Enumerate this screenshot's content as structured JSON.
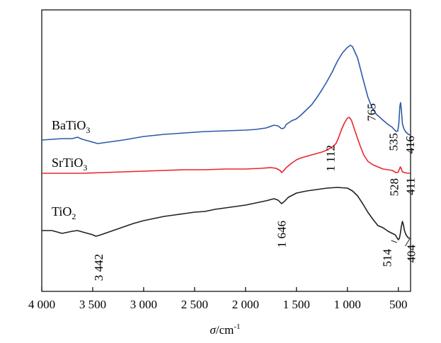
{
  "chart_data": {
    "type": "line",
    "xlabel": "σ/cm⁻¹",
    "xlabel_parts": {
      "symbol": "σ",
      "unit": "/cm",
      "exp": "-1"
    },
    "xlim": [
      4000,
      380
    ],
    "x_reversed": true,
    "y_axis_visible": false,
    "grid": false,
    "xticks": [
      {
        "value": 4000,
        "label": "4 000"
      },
      {
        "value": 3500,
        "label": "3 500"
      },
      {
        "value": 3000,
        "label": "3 000"
      },
      {
        "value": 2500,
        "label": "2 500"
      },
      {
        "value": 2000,
        "label": "2 000"
      },
      {
        "value": 1500,
        "label": "1 500"
      },
      {
        "value": 1000,
        "label": "1 000"
      },
      {
        "value": 500,
        "label": "500"
      }
    ],
    "series": [
      {
        "name": "BaTiO3",
        "label_base": "BaTiO",
        "label_sub": "3",
        "color": "#2c5aa8",
        "points": [
          [
            4000,
            198
          ],
          [
            3900,
            197
          ],
          [
            3800,
            196
          ],
          [
            3700,
            196
          ],
          [
            3650,
            194
          ],
          [
            3600,
            197
          ],
          [
            3500,
            201
          ],
          [
            3450,
            203
          ],
          [
            3400,
            202
          ],
          [
            3300,
            200
          ],
          [
            3200,
            198
          ],
          [
            3000,
            193
          ],
          [
            2800,
            190
          ],
          [
            2600,
            188
          ],
          [
            2400,
            186
          ],
          [
            2200,
            185
          ],
          [
            2000,
            184
          ],
          [
            1900,
            183
          ],
          [
            1800,
            181
          ],
          [
            1720,
            177
          ],
          [
            1680,
            178
          ],
          [
            1646,
            182
          ],
          [
            1620,
            181
          ],
          [
            1600,
            176
          ],
          [
            1550,
            171
          ],
          [
            1500,
            168
          ],
          [
            1450,
            162
          ],
          [
            1400,
            155
          ],
          [
            1350,
            148
          ],
          [
            1300,
            138
          ],
          [
            1250,
            127
          ],
          [
            1200,
            115
          ],
          [
            1150,
            102
          ],
          [
            1100,
            87
          ],
          [
            1050,
            75
          ],
          [
            1000,
            67
          ],
          [
            970,
            64
          ],
          [
            950,
            66
          ],
          [
            900,
            82
          ],
          [
            850,
            110
          ],
          [
            800,
            137
          ],
          [
            765,
            150
          ],
          [
            720,
            161
          ],
          [
            650,
            170
          ],
          [
            600,
            176
          ],
          [
            560,
            180
          ],
          [
            535,
            184
          ],
          [
            520,
            186
          ],
          [
            505,
            185
          ],
          [
            495,
            175
          ],
          [
            485,
            150
          ],
          [
            478,
            145
          ],
          [
            470,
            155
          ],
          [
            460,
            175
          ],
          [
            445,
            182
          ],
          [
            430,
            186
          ],
          [
            416,
            188
          ],
          [
            400,
            190
          ],
          [
            385,
            191
          ]
        ]
      },
      {
        "name": "SrTiO3",
        "label_base": "SrTiO",
        "label_sub": "3",
        "color": "#e8262b",
        "points": [
          [
            4000,
            245
          ],
          [
            3800,
            245
          ],
          [
            3600,
            245
          ],
          [
            3400,
            244
          ],
          [
            3200,
            243
          ],
          [
            3000,
            242
          ],
          [
            2800,
            241
          ],
          [
            2600,
            240
          ],
          [
            2400,
            240
          ],
          [
            2200,
            239
          ],
          [
            2000,
            239
          ],
          [
            1850,
            238
          ],
          [
            1750,
            237
          ],
          [
            1700,
            238
          ],
          [
            1660,
            241
          ],
          [
            1646,
            244
          ],
          [
            1630,
            242
          ],
          [
            1600,
            237
          ],
          [
            1550,
            231
          ],
          [
            1500,
            226
          ],
          [
            1450,
            223
          ],
          [
            1400,
            221
          ],
          [
            1350,
            219
          ],
          [
            1300,
            217
          ],
          [
            1250,
            215
          ],
          [
            1200,
            212
          ],
          [
            1150,
            208
          ],
          [
            1112,
            203
          ],
          [
            1090,
            196
          ],
          [
            1060,
            184
          ],
          [
            1030,
            174
          ],
          [
            1000,
            167
          ],
          [
            980,
            166
          ],
          [
            960,
            170
          ],
          [
            930,
            183
          ],
          [
            900,
            196
          ],
          [
            870,
            208
          ],
          [
            840,
            219
          ],
          [
            800,
            228
          ],
          [
            750,
            233
          ],
          [
            700,
            236
          ],
          [
            650,
            239
          ],
          [
            600,
            240
          ],
          [
            560,
            241
          ],
          [
            535,
            243
          ],
          [
            528,
            244
          ],
          [
            515,
            244
          ],
          [
            500,
            243
          ],
          [
            490,
            239
          ],
          [
            480,
            236
          ],
          [
            470,
            239
          ],
          [
            460,
            243
          ],
          [
            440,
            244
          ],
          [
            411,
            245
          ],
          [
            395,
            245
          ],
          [
            385,
            245
          ]
        ]
      },
      {
        "name": "TiO2",
        "label_base": "TiO",
        "label_sub": "2",
        "color": "#231f20",
        "points": [
          [
            4000,
            326
          ],
          [
            3900,
            326
          ],
          [
            3800,
            330
          ],
          [
            3700,
            327
          ],
          [
            3650,
            326
          ],
          [
            3600,
            328
          ],
          [
            3550,
            330
          ],
          [
            3500,
            332
          ],
          [
            3470,
            334
          ],
          [
            3442,
            333
          ],
          [
            3400,
            331
          ],
          [
            3300,
            326
          ],
          [
            3200,
            321
          ],
          [
            3100,
            316
          ],
          [
            3000,
            312
          ],
          [
            2900,
            309
          ],
          [
            2800,
            306
          ],
          [
            2700,
            304
          ],
          [
            2600,
            302
          ],
          [
            2500,
            300
          ],
          [
            2400,
            299
          ],
          [
            2300,
            296
          ],
          [
            2200,
            294
          ],
          [
            2100,
            292
          ],
          [
            2000,
            290
          ],
          [
            1900,
            287
          ],
          [
            1800,
            284
          ],
          [
            1720,
            281
          ],
          [
            1680,
            283
          ],
          [
            1646,
            288
          ],
          [
            1620,
            285
          ],
          [
            1580,
            279
          ],
          [
            1500,
            273
          ],
          [
            1400,
            270
          ],
          [
            1300,
            268
          ],
          [
            1200,
            266
          ],
          [
            1100,
            265
          ],
          [
            1000,
            266
          ],
          [
            950,
            270
          ],
          [
            900,
            277
          ],
          [
            850,
            288
          ],
          [
            800,
            300
          ],
          [
            750,
            310
          ],
          [
            700,
            319
          ],
          [
            650,
            322
          ],
          [
            600,
            327
          ],
          [
            560,
            330
          ],
          [
            530,
            332
          ],
          [
            514,
            336
          ],
          [
            500,
            339
          ],
          [
            490,
            337
          ],
          [
            480,
            330
          ],
          [
            470,
            320
          ],
          [
            460,
            313
          ],
          [
            450,
            318
          ],
          [
            440,
            326
          ],
          [
            430,
            330
          ],
          [
            420,
            333
          ],
          [
            404,
            336
          ],
          [
            390,
            337
          ],
          [
            385,
            337
          ]
        ]
      }
    ],
    "annotations": [
      {
        "text": "765",
        "x": 765,
        "series": "BaTiO3"
      },
      {
        "text": "535",
        "x": 535,
        "series": "BaTiO3"
      },
      {
        "text": "416",
        "x": 416,
        "series": "BaTiO3"
      },
      {
        "text": "1 112",
        "x": 1112,
        "series": "SrTiO3"
      },
      {
        "text": "528",
        "x": 528,
        "series": "SrTiO3"
      },
      {
        "text": "411",
        "x": 411,
        "series": "SrTiO3"
      },
      {
        "text": "1 646",
        "x": 1646,
        "series": "TiO2"
      },
      {
        "text": "3 442",
        "x": 3442,
        "series": "TiO2"
      },
      {
        "text": "514",
        "x": 514,
        "series": "TiO2"
      },
      {
        "text": "404",
        "x": 404,
        "series": "TiO2"
      }
    ]
  }
}
